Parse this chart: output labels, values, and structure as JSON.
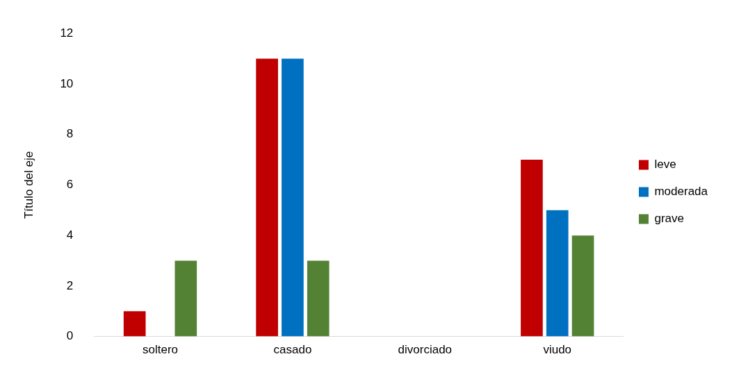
{
  "chart_data": {
    "type": "bar",
    "ylabel": "Título del eje",
    "categories": [
      "soltero",
      "casado",
      "divorciado",
      "viudo"
    ],
    "series": [
      {
        "name": "leve",
        "color": "#c00000",
        "values": [
          1,
          11,
          0,
          7
        ]
      },
      {
        "name": "moderada",
        "color": "#0070c0",
        "values": [
          0,
          11,
          0,
          5
        ]
      },
      {
        "name": "grave",
        "color": "#548235",
        "values": [
          3,
          3,
          0,
          4
        ]
      }
    ],
    "ylim": [
      0,
      12
    ],
    "yticks": [
      0,
      2,
      4,
      6,
      8,
      10,
      12
    ],
    "grid": false,
    "legend": "right"
  }
}
